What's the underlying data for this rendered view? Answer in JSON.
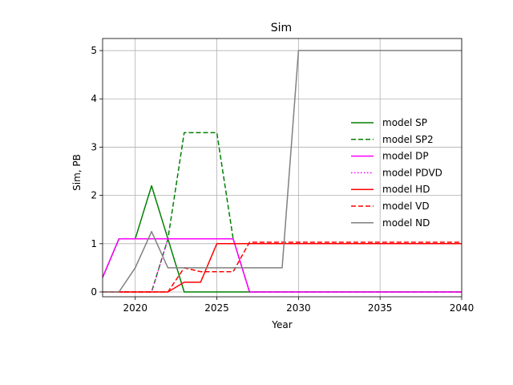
{
  "chart_data": {
    "type": "line",
    "title": "Sim",
    "xlabel": "Year",
    "ylabel": "Sim, PB",
    "xlim": [
      2018,
      2040
    ],
    "ylim": [
      -0.1,
      5.25
    ],
    "xticks": [
      2020,
      2025,
      2030,
      2035,
      2040
    ],
    "yticks": [
      0,
      1,
      2,
      3,
      4,
      5
    ],
    "grid": true,
    "legend_position": "center-right",
    "x": [
      2018,
      2019,
      2020,
      2021,
      2022,
      2023,
      2024,
      2025,
      2026,
      2027,
      2028,
      2029,
      2030,
      2031,
      2032,
      2033,
      2034,
      2035,
      2036,
      2037,
      2038,
      2039,
      2040
    ],
    "series": [
      {
        "name": "model SP",
        "color": "#008000",
        "style": "solid",
        "values": [
          0.3,
          1.1,
          1.1,
          2.2,
          1.1,
          0,
          0,
          0,
          0,
          0,
          0,
          0,
          0,
          0,
          0,
          0,
          0,
          0,
          0,
          0,
          0,
          0,
          0
        ]
      },
      {
        "name": "model SP2",
        "color": "#008000",
        "style": "dashed",
        "values": [
          0,
          0,
          0,
          0,
          1.1,
          3.3,
          3.3,
          3.3,
          1.1,
          0,
          0,
          0,
          0,
          0,
          0,
          0,
          0,
          0,
          0,
          0,
          0,
          0,
          0
        ]
      },
      {
        "name": "model DP",
        "color": "#ff00ff",
        "style": "solid",
        "values": [
          0.3,
          1.1,
          1.1,
          1.1,
          1.1,
          1.1,
          1.1,
          1.1,
          1.1,
          0,
          0,
          0,
          0,
          0,
          0,
          0,
          0,
          0,
          0,
          0,
          0,
          0,
          0
        ]
      },
      {
        "name": "model PDVD",
        "color": "#ff00ff",
        "style": "dotted",
        "values": [
          0,
          0,
          0,
          0,
          1.1,
          1.1,
          1.1,
          1.1,
          1.1,
          0,
          0,
          0,
          0,
          0,
          0,
          0,
          0,
          0,
          0,
          0,
          0,
          0,
          0
        ]
      },
      {
        "name": "model HD",
        "color": "#ff0000",
        "style": "solid",
        "values": [
          0,
          0,
          0,
          0,
          0,
          0.2,
          0.2,
          1.0,
          1.0,
          1.0,
          1.0,
          1.0,
          1.0,
          1.0,
          1.0,
          1.0,
          1.0,
          1.0,
          1.0,
          1.0,
          1.0,
          1.0,
          1.0
        ]
      },
      {
        "name": "model VD",
        "color": "#ff0000",
        "style": "dashed",
        "values": [
          0,
          0,
          0,
          0,
          0,
          0.5,
          0.42,
          0.42,
          0.42,
          1.03,
          1.03,
          1.03,
          1.03,
          1.03,
          1.03,
          1.03,
          1.03,
          1.03,
          1.03,
          1.03,
          1.03,
          1.03,
          1.03
        ]
      },
      {
        "name": "model ND",
        "color": "#808080",
        "style": "solid",
        "values": [
          0,
          0,
          0.5,
          1.25,
          0.5,
          0.5,
          0.5,
          0.5,
          0.5,
          0.5,
          0.5,
          0.5,
          5.0,
          5.0,
          5.0,
          5.0,
          5.0,
          5.0,
          5.0,
          5.0,
          5.0,
          5.0,
          5.0
        ]
      }
    ]
  }
}
